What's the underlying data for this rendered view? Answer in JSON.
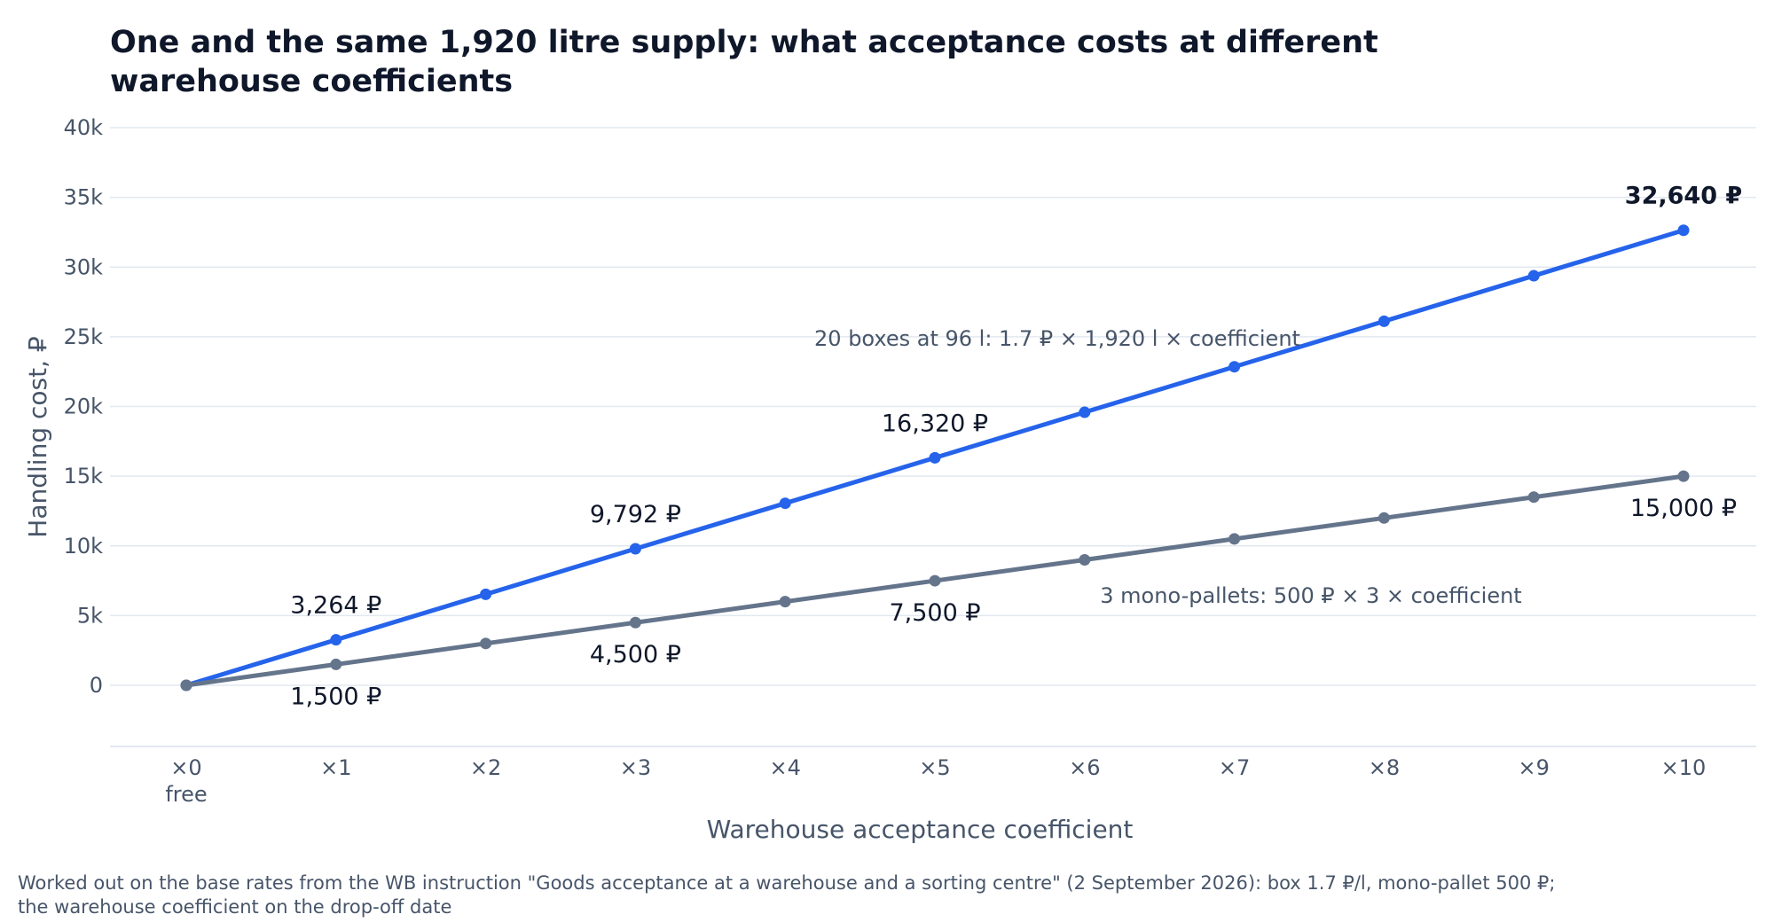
{
  "chart_data": {
    "type": "line",
    "title": "One and the same 1,920 litre supply: what acceptance costs at different warehouse coefficients",
    "xlabel": "Warehouse acceptance coefficient",
    "ylabel": "Handling cost, ₽",
    "categories": [
      "×0",
      "×1",
      "×2",
      "×3",
      "×4",
      "×5",
      "×6",
      "×7",
      "×8",
      "×9",
      "×10"
    ],
    "x": [
      0,
      1,
      2,
      3,
      4,
      5,
      6,
      7,
      8,
      9,
      10
    ],
    "x_sublabels": {
      "0": "free"
    },
    "ylim": [
      -4500,
      40000
    ],
    "yticks": [
      0,
      5000,
      10000,
      15000,
      20000,
      25000,
      30000,
      35000,
      40000
    ],
    "ytick_labels": [
      "0",
      "5k",
      "10k",
      "15k",
      "20k",
      "25k",
      "30k",
      "35k",
      "40k"
    ],
    "grid": true,
    "series": [
      {
        "color": "#2563eb",
        "values": [
          0,
          3264,
          6528,
          9792,
          13056,
          16320,
          19584,
          22848,
          26112,
          29376,
          32640
        ],
        "data_labels": [
          {
            "index": 1,
            "text": "3,264 ₽",
            "position": "above"
          },
          {
            "index": 3,
            "text": "9,792 ₽",
            "position": "above"
          },
          {
            "index": 5,
            "text": "16,320 ₽",
            "position": "above"
          },
          {
            "index": 10,
            "text": "32,640 ₽",
            "position": "above",
            "bold": true
          }
        ]
      },
      {
        "color": "#64748b",
        "values": [
          0,
          1500,
          3000,
          4500,
          6000,
          7500,
          9000,
          10500,
          12000,
          13500,
          15000
        ],
        "data_labels": [
          {
            "index": 1,
            "text": "1,500 ₽",
            "position": "below"
          },
          {
            "index": 3,
            "text": "4,500 ₽",
            "position": "below"
          },
          {
            "index": 5,
            "text": "7,500 ₽",
            "position": "below"
          },
          {
            "index": 10,
            "text": "15,000 ₽",
            "position": "below"
          }
        ]
      }
    ],
    "annotations": [
      {
        "text": "20 boxes at 96 l: 1.7 ₽ × 1,920 l × coefficient",
        "series": 0
      },
      {
        "text": "3 mono-pallets: 500 ₽ × 3 × coefficient",
        "series": 1
      }
    ]
  },
  "source_note": "Worked out on the base rates from the WB instruction \"Goods acceptance at a warehouse and a sorting centre\" (2 September 2026): box 1.7 ₽/l, mono-pallet 500 ₽; the warehouse coefficient on the drop-off date"
}
